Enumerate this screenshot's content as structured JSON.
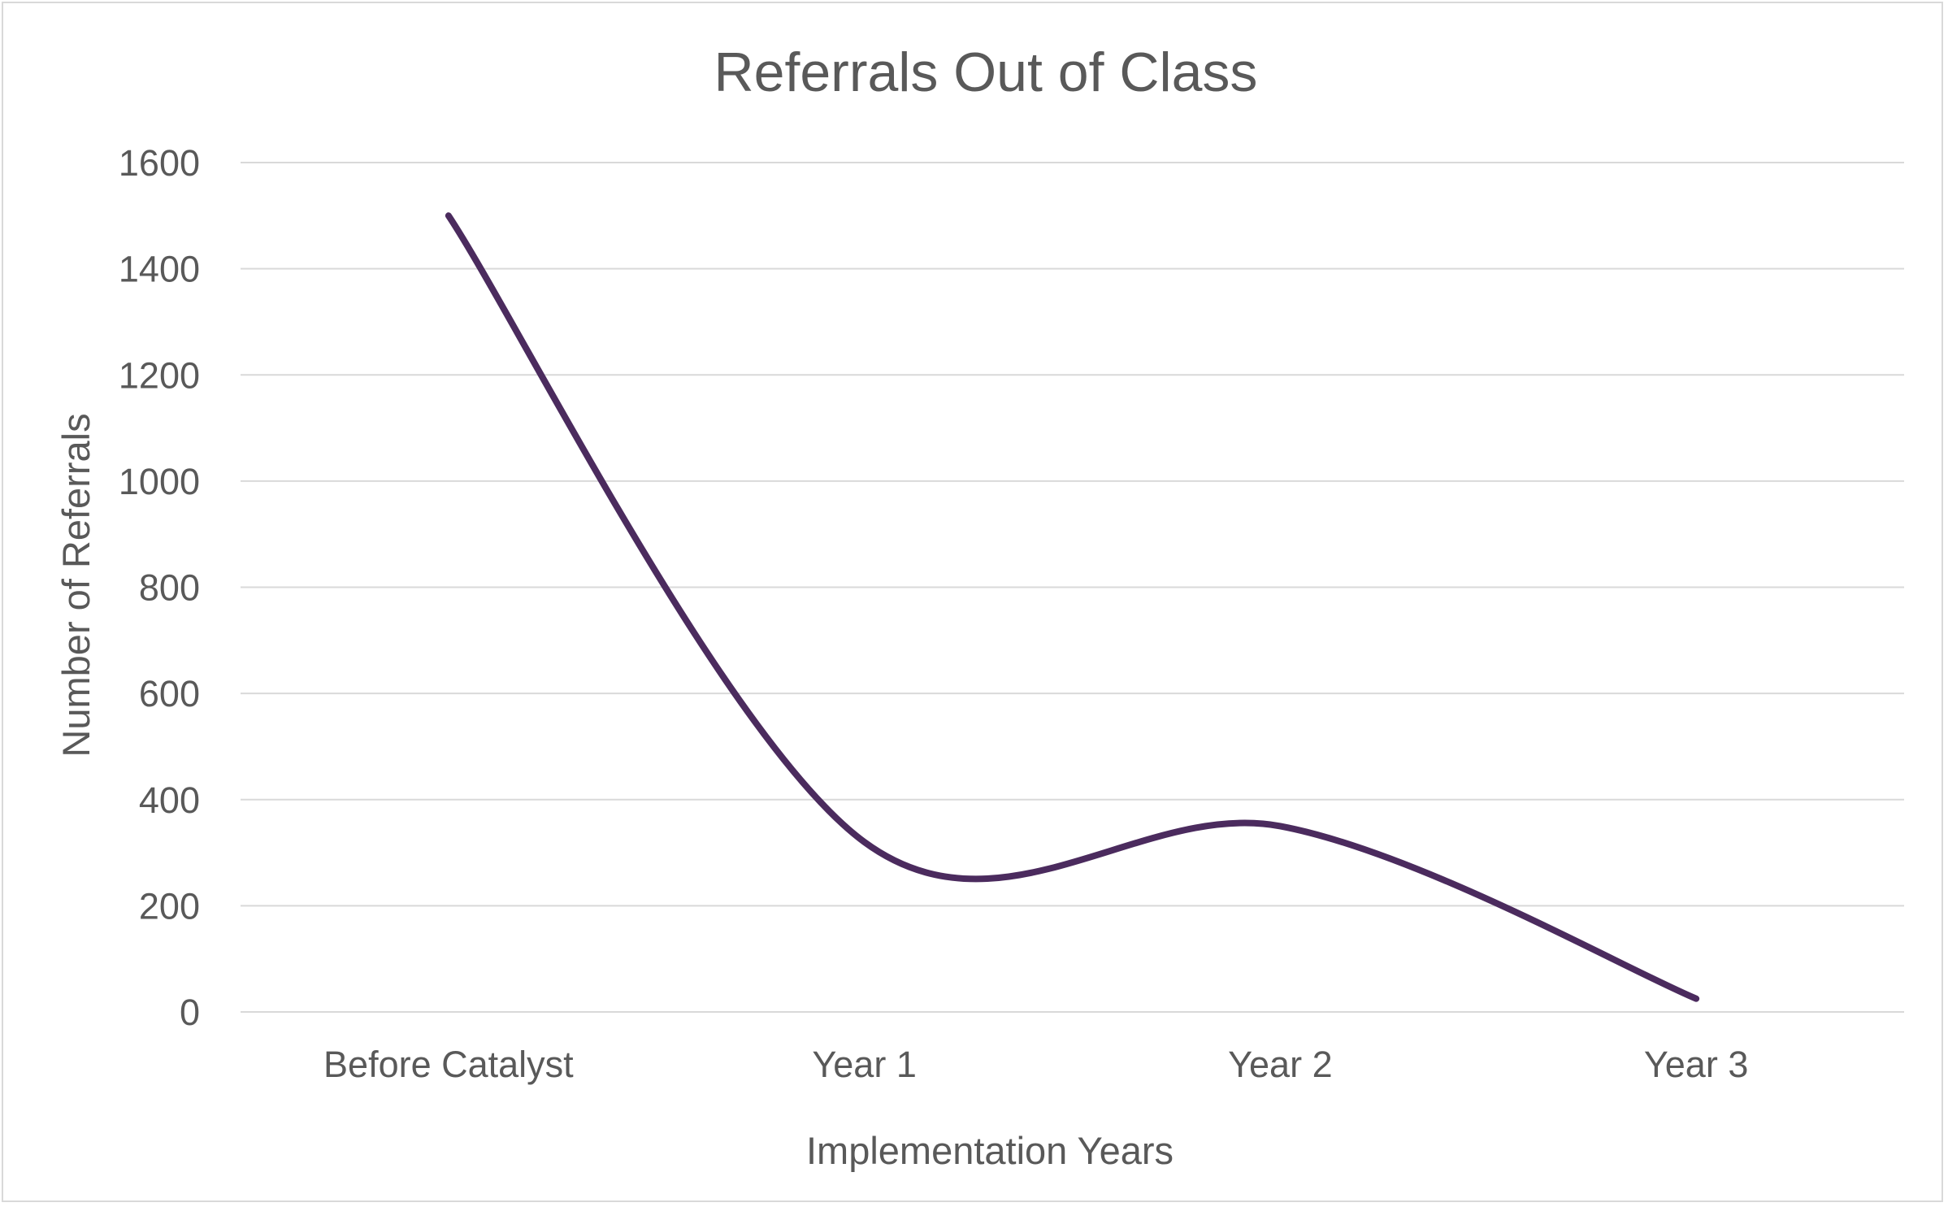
{
  "chart_data": {
    "type": "line",
    "title": "Referrals Out of Class",
    "xlabel": "Implementation Years",
    "ylabel": "Number of Referrals",
    "categories": [
      "Before Catalyst",
      "Year 1",
      "Year 2",
      "Year 3"
    ],
    "series": [
      {
        "values": [
          1500,
          320,
          350,
          25
        ]
      }
    ],
    "ylim": [
      0,
      1600
    ],
    "yticks": [
      0,
      200,
      400,
      600,
      800,
      1000,
      1200,
      1400,
      1600
    ],
    "grid": true,
    "smooth": true,
    "legend": "none",
    "colors": {
      "line": "#4b2b5e",
      "grid": "#d9d9d9",
      "text": "#595959"
    }
  }
}
